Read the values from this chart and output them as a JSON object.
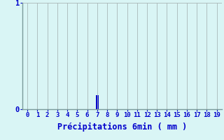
{
  "xlabel": "Précipitations 6min ( mm )",
  "background_color": "#d9f5f5",
  "bar_x": [
    7
  ],
  "bar_heights": [
    0.13
  ],
  "bar_color": "#0000cc",
  "xlim": [
    -0.5,
    19.5
  ],
  "ylim": [
    0,
    1.0
  ],
  "x_ticks": [
    0,
    1,
    2,
    3,
    4,
    5,
    6,
    7,
    8,
    9,
    10,
    11,
    12,
    13,
    14,
    15,
    16,
    17,
    18,
    19
  ],
  "y_ticks": [
    0,
    1
  ],
  "grid_color": "#aab8b8",
  "tick_color": "#0000cc",
  "label_color": "#0000cc",
  "axis_color": "#7a9a9a",
  "xlabel_fontsize": 8.5,
  "tick_fontsize": 6.5
}
